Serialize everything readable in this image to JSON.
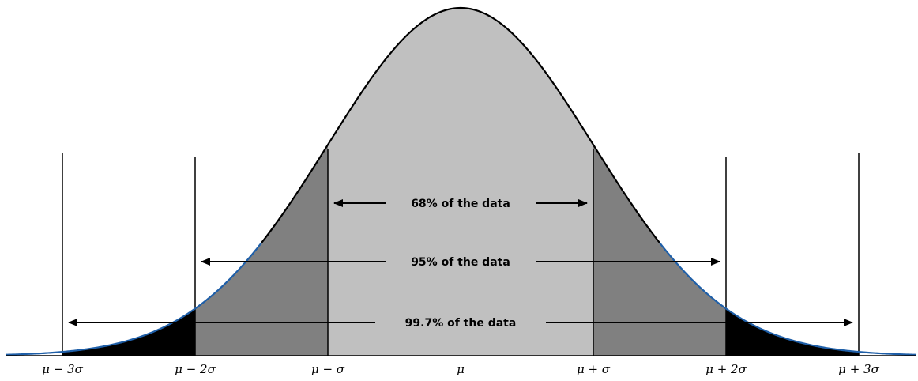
{
  "diagram": {
    "curve_color": "#000000",
    "tail_curve_color": "#1f5fa8",
    "fill_colors": {
      "within_1_sigma": "#c0c0c0",
      "between_1_and_2_sigma": "#808080",
      "between_2_and_3_sigma": "#000000"
    },
    "bands": [
      {
        "label": "68% of the data",
        "from_sigma": -1,
        "to_sigma": 1
      },
      {
        "label": "95% of the data",
        "from_sigma": -2,
        "to_sigma": 2
      },
      {
        "label": "99.7% of the data",
        "from_sigma": -3,
        "to_sigma": 3
      }
    ],
    "ticks": [
      {
        "label": "μ − 3σ",
        "sigma": -3
      },
      {
        "label": "μ − 2σ",
        "sigma": -2
      },
      {
        "label": "μ − σ",
        "sigma": -1
      },
      {
        "label": "μ",
        "sigma": 0
      },
      {
        "label": "μ + σ",
        "sigma": 1
      },
      {
        "label": "μ + 2σ",
        "sigma": 2
      },
      {
        "label": "μ + 3σ",
        "sigma": 3
      }
    ]
  }
}
